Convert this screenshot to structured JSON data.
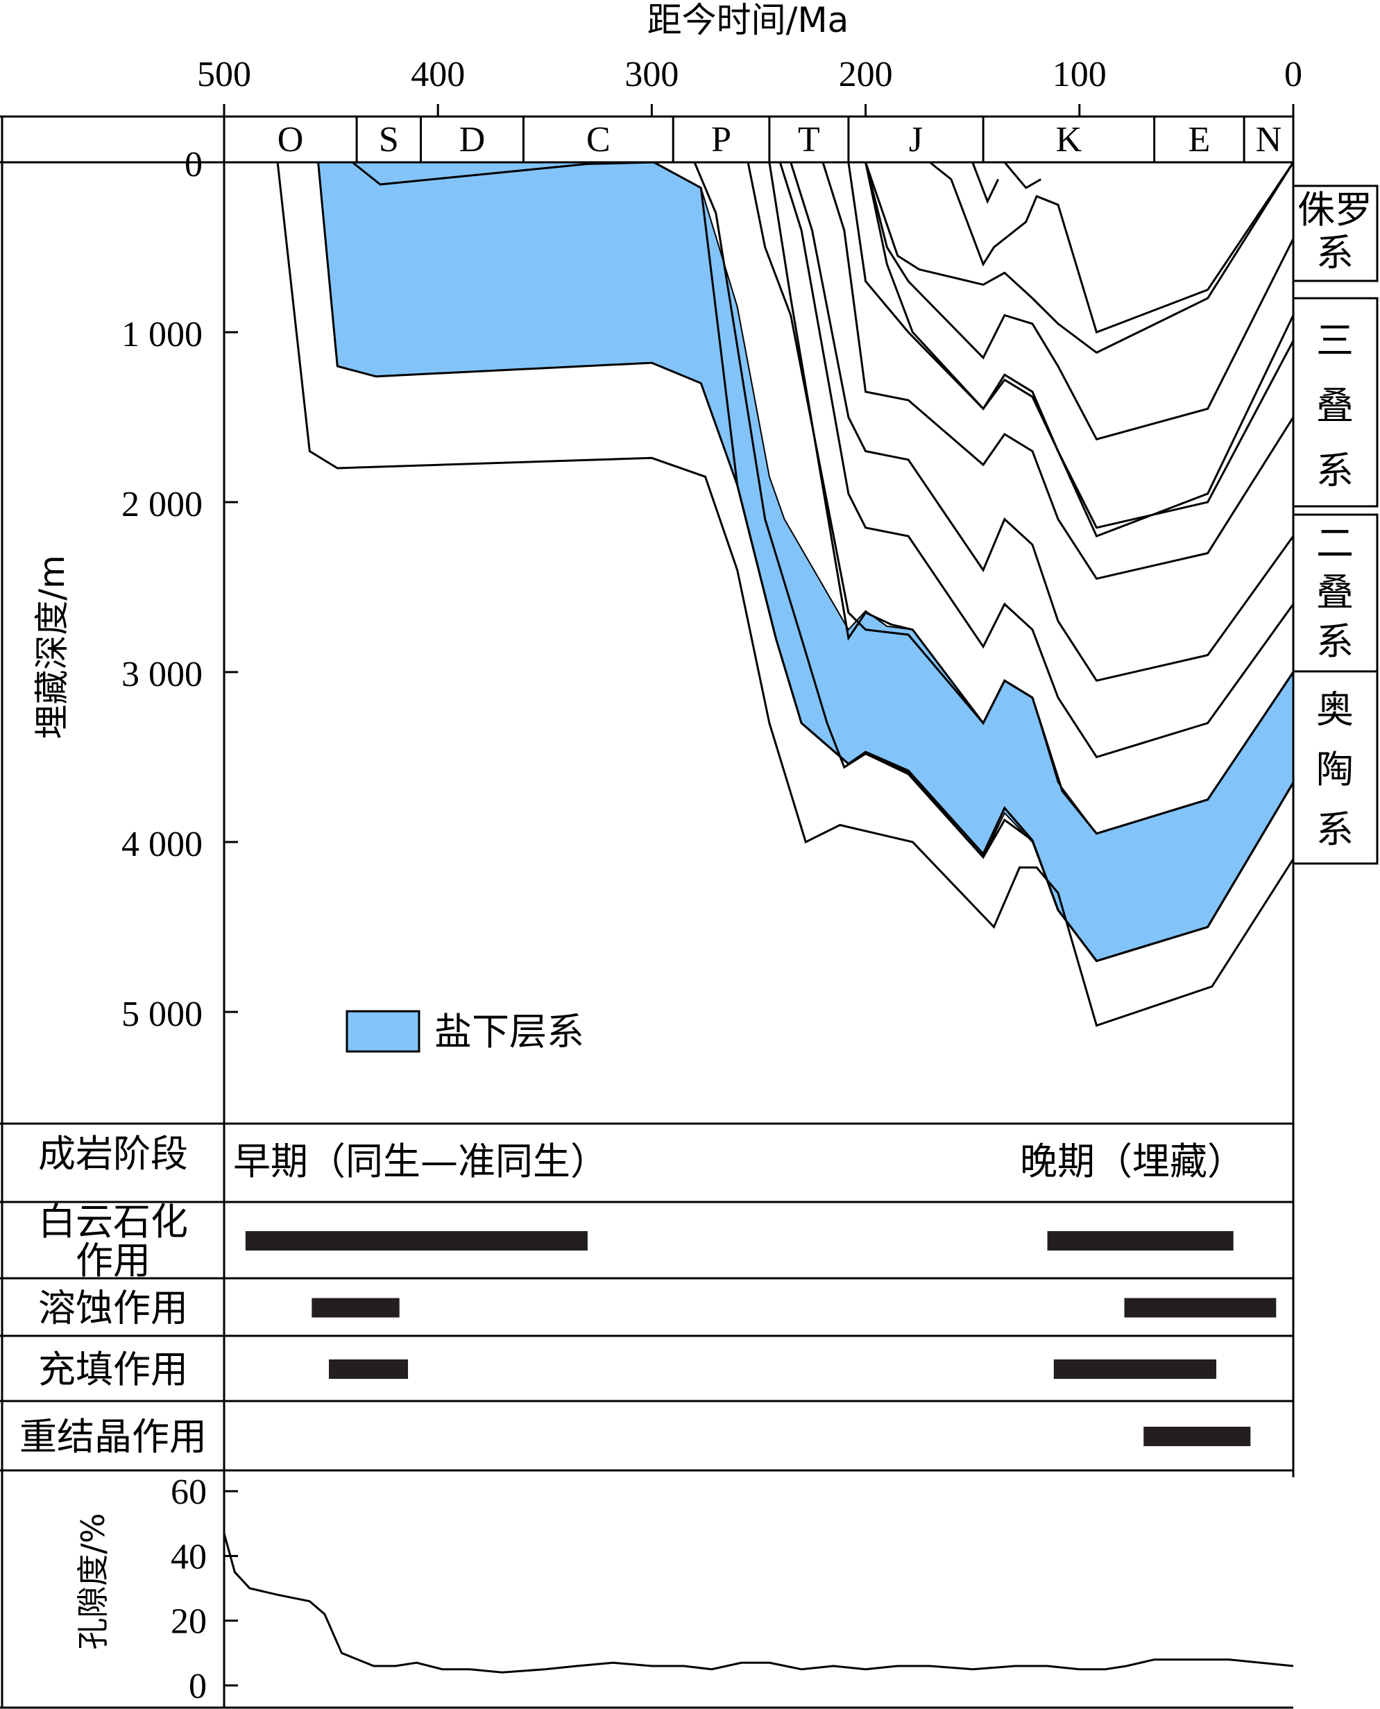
{
  "top_axis": {
    "title": "距今时间/Ma",
    "ticks": [
      "500",
      "400",
      "300",
      "200",
      "100",
      "0"
    ]
  },
  "periods": [
    {
      "code": "O",
      "start": 500,
      "end": 438
    },
    {
      "code": "S",
      "start": 438,
      "end": 408
    },
    {
      "code": "D",
      "start": 408,
      "end": 360
    },
    {
      "code": "C",
      "start": 360,
      "end": 290
    },
    {
      "code": "P",
      "start": 290,
      "end": 245
    },
    {
      "code": "T",
      "start": 245,
      "end": 208
    },
    {
      "code": "J",
      "start": 208,
      "end": 145
    },
    {
      "code": "K",
      "start": 145,
      "end": 65
    },
    {
      "code": "E",
      "start": 65,
      "end": 23
    },
    {
      "code": "N",
      "start": 23,
      "end": 0
    }
  ],
  "y_axis": {
    "title": "埋藏深度/m",
    "ticks": [
      "0",
      "1 000",
      "2 000",
      "3 000",
      "4 000",
      "5 000"
    ]
  },
  "formations": [
    "侏罗系",
    "三叠系",
    "二叠系",
    "奥陶系"
  ],
  "legend": {
    "label": "盐下层系",
    "color": "#82c4fa"
  },
  "diagenesis": {
    "header": "成岩阶段",
    "early": "早期（同生—准同生）",
    "late": "晚期（埋藏）",
    "processes": [
      {
        "label": "白云石化作用",
        "intervals": [
          [
            490,
            330
          ],
          [
            115,
            28
          ]
        ]
      },
      {
        "label": "溶蚀作用",
        "intervals": [
          [
            459,
            418
          ],
          [
            79,
            8
          ]
        ]
      },
      {
        "label": "充填作用",
        "intervals": [
          [
            451,
            414
          ],
          [
            112,
            36
          ]
        ]
      },
      {
        "label": "重结晶作用",
        "intervals": [
          [
            70,
            20
          ]
        ]
      }
    ]
  },
  "porosity": {
    "title": "孔隙度/%",
    "ticks": [
      "0",
      "20",
      "40",
      "60"
    ],
    "ylim": [
      0,
      60
    ]
  },
  "chart_data": {
    "type": "area",
    "title": "",
    "xlabel": "距今时间/Ma",
    "ylabel": "埋藏深度/m",
    "xlim": [
      500,
      0
    ],
    "ylim": [
      0,
      5600
    ],
    "x_reversed": true,
    "y_reversed": true,
    "burial_curves": [
      {
        "points": [
          [
            475,
            0
          ],
          [
            460,
            1700
          ],
          [
            447,
            1800
          ],
          [
            300,
            1740
          ],
          [
            275,
            1850
          ],
          [
            260,
            2400
          ],
          [
            245,
            3300
          ],
          [
            228,
            4000
          ],
          [
            212,
            3900
          ],
          [
            178,
            4000
          ],
          [
            140,
            4500
          ],
          [
            128,
            4150
          ],
          [
            120,
            4150
          ],
          [
            110,
            4300
          ],
          [
            92,
            5080
          ],
          [
            38,
            4850
          ],
          [
            0,
            4100
          ]
        ]
      },
      {
        "points": [
          [
            456,
            0
          ],
          [
            447,
            1200
          ],
          [
            429,
            1260
          ],
          [
            300,
            1180
          ],
          [
            277,
            1300
          ],
          [
            260,
            1900
          ],
          [
            242,
            2800
          ],
          [
            230,
            3300
          ],
          [
            208,
            3540
          ],
          [
            200,
            3470
          ],
          [
            180,
            3580
          ],
          [
            145,
            4070
          ],
          [
            135,
            3800
          ],
          [
            122,
            3990
          ],
          [
            110,
            4400
          ],
          [
            92,
            4700
          ],
          [
            40,
            4500
          ],
          [
            0,
            3650
          ]
        ]
      },
      {
        "points": [
          [
            440,
            0
          ],
          [
            427,
            130
          ],
          [
            330,
            10
          ],
          [
            299,
            0
          ],
          [
            277,
            150
          ],
          [
            260,
            1900
          ],
          [
            242,
            2800
          ],
          [
            230,
            3300
          ],
          [
            208,
            3540
          ],
          [
            200,
            3470
          ],
          [
            180,
            3580
          ],
          [
            145,
            4070
          ],
          [
            135,
            3800
          ],
          [
            122,
            3990
          ],
          [
            110,
            4400
          ],
          [
            92,
            4700
          ],
          [
            40,
            4500
          ],
          [
            0,
            3650
          ]
        ]
      },
      {
        "points": [
          [
            280,
            0
          ],
          [
            270,
            300
          ],
          [
            247,
            2100
          ],
          [
            230,
            2800
          ],
          [
            218,
            3300
          ],
          [
            210,
            3560
          ],
          [
            200,
            3480
          ],
          [
            180,
            3600
          ],
          [
            145,
            4090
          ],
          [
            135,
            3870
          ],
          [
            122,
            3990
          ],
          [
            110,
            4400
          ],
          [
            92,
            4700
          ],
          [
            40,
            4500
          ],
          [
            0,
            3650
          ]
        ]
      },
      {
        "points": [
          [
            255,
            0
          ],
          [
            247,
            500
          ],
          [
            235,
            900
          ],
          [
            208,
            2650
          ],
          [
            200,
            2750
          ],
          [
            180,
            2780
          ],
          [
            145,
            3300
          ],
          [
            135,
            3050
          ],
          [
            122,
            3150
          ],
          [
            108,
            3700
          ],
          [
            92,
            3950
          ],
          [
            40,
            3750
          ],
          [
            0,
            3000
          ]
        ]
      },
      {
        "points": [
          [
            245,
            0
          ],
          [
            235,
            800
          ],
          [
            208,
            2800
          ],
          [
            200,
            2650
          ],
          [
            188,
            2720
          ],
          [
            178,
            2750
          ],
          [
            145,
            3300
          ],
          [
            135,
            3050
          ],
          [
            122,
            3150
          ],
          [
            108,
            3700
          ],
          [
            92,
            3950
          ],
          [
            40,
            3750
          ],
          [
            0,
            3000
          ]
        ]
      },
      {
        "points": [
          [
            240,
            0
          ],
          [
            230,
            400
          ],
          [
            208,
            1950
          ],
          [
            200,
            2150
          ],
          [
            180,
            2200
          ],
          [
            145,
            2850
          ],
          [
            135,
            2600
          ],
          [
            122,
            2750
          ],
          [
            110,
            3150
          ],
          [
            92,
            3500
          ],
          [
            40,
            3300
          ],
          [
            0,
            2600
          ]
        ]
      },
      {
        "points": [
          [
            235,
            0
          ],
          [
            225,
            400
          ],
          [
            208,
            1500
          ],
          [
            200,
            1700
          ],
          [
            180,
            1750
          ],
          [
            145,
            2400
          ],
          [
            135,
            2100
          ],
          [
            122,
            2250
          ],
          [
            110,
            2700
          ],
          [
            92,
            3050
          ],
          [
            40,
            2900
          ],
          [
            0,
            2200
          ]
        ]
      },
      {
        "points": [
          [
            220,
            0
          ],
          [
            210,
            400
          ],
          [
            200,
            1350
          ],
          [
            180,
            1400
          ],
          [
            145,
            1780
          ],
          [
            135,
            1600
          ],
          [
            122,
            1700
          ],
          [
            110,
            2100
          ],
          [
            92,
            2450
          ],
          [
            40,
            2300
          ],
          [
            0,
            1500
          ]
        ]
      },
      {
        "points": [
          [
            208,
            0
          ],
          [
            200,
            700
          ],
          [
            180,
            1000
          ],
          [
            145,
            1450
          ],
          [
            135,
            1250
          ],
          [
            122,
            1350
          ],
          [
            110,
            1700
          ],
          [
            92,
            2150
          ],
          [
            40,
            2000
          ],
          [
            0,
            1050
          ]
        ]
      },
      {
        "points": [
          [
            200,
            0
          ],
          [
            190,
            600
          ],
          [
            178,
            1000
          ],
          [
            145,
            1450
          ],
          [
            135,
            1280
          ],
          [
            122,
            1380
          ],
          [
            110,
            1700
          ],
          [
            92,
            2200
          ],
          [
            40,
            1950
          ],
          [
            0,
            900
          ]
        ]
      },
      {
        "points": [
          [
            200,
            0
          ],
          [
            190,
            500
          ],
          [
            180,
            700
          ],
          [
            145,
            1150
          ],
          [
            135,
            900
          ],
          [
            122,
            950
          ],
          [
            110,
            1200
          ],
          [
            92,
            1630
          ],
          [
            40,
            1450
          ],
          [
            0,
            450
          ]
        ]
      },
      {
        "points": [
          [
            200,
            0
          ],
          [
            185,
            550
          ],
          [
            175,
            630
          ],
          [
            145,
            720
          ],
          [
            135,
            650
          ],
          [
            122,
            800
          ],
          [
            110,
            950
          ],
          [
            92,
            1120
          ],
          [
            40,
            800
          ],
          [
            0,
            0
          ]
        ]
      },
      {
        "points": [
          [
            170,
            0
          ],
          [
            160,
            100
          ],
          [
            145,
            600
          ],
          [
            140,
            500
          ],
          [
            125,
            350
          ],
          [
            120,
            200
          ],
          [
            110,
            250
          ],
          [
            92,
            1000
          ],
          [
            40,
            750
          ],
          [
            0,
            0
          ]
        ]
      },
      {
        "points": [
          [
            150,
            0
          ],
          [
            143,
            230
          ],
          [
            138,
            100
          ]
        ]
      },
      {
        "points": [
          [
            135,
            0
          ],
          [
            125,
            150
          ],
          [
            118,
            100
          ]
        ]
      }
    ],
    "subsalt_band": {
      "upper": [
        [
          456,
          0
        ],
        [
          440,
          0
        ],
        [
          427,
          130
        ],
        [
          330,
          10
        ],
        [
          299,
          0
        ],
        [
          277,
          150
        ],
        [
          260,
          1900
        ],
        [
          242,
          2800
        ],
        [
          230,
          3300
        ],
        [
          208,
          3540
        ],
        [
          200,
          3470
        ],
        [
          180,
          3580
        ],
        [
          145,
          4070
        ]
      ],
      "lower": [
        [
          456,
          0
        ],
        [
          447,
          1200
        ],
        [
          429,
          1260
        ],
        [
          300,
          1180
        ],
        [
          277,
          1300
        ],
        [
          260,
          1900
        ]
      ],
      "polygon": [
        [
          456,
          0
        ],
        [
          299,
          0
        ],
        [
          277,
          150
        ],
        [
          260,
          850
        ],
        [
          245,
          1850
        ],
        [
          238,
          2100
        ],
        [
          208,
          2750
        ],
        [
          200,
          2640
        ],
        [
          190,
          2730
        ],
        [
          178,
          2750
        ],
        [
          145,
          3300
        ],
        [
          135,
          3050
        ],
        [
          122,
          3150
        ],
        [
          110,
          3650
        ],
        [
          92,
          3950
        ],
        [
          40,
          3750
        ],
        [
          0,
          3000
        ],
        [
          0,
          3650
        ],
        [
          40,
          4500
        ],
        [
          92,
          4700
        ],
        [
          110,
          4400
        ],
        [
          122,
          4000
        ],
        [
          135,
          3830
        ],
        [
          145,
          4090
        ],
        [
          180,
          3590
        ],
        [
          200,
          3470
        ],
        [
          208,
          3540
        ],
        [
          230,
          3300
        ],
        [
          242,
          2800
        ],
        [
          260,
          1900
        ],
        [
          277,
          1300
        ],
        [
          300,
          1180
        ],
        [
          429,
          1260
        ],
        [
          447,
          1200
        ]
      ]
    },
    "porosity_series": {
      "name": "孔隙度",
      "points": [
        [
          500,
          47
        ],
        [
          495,
          35
        ],
        [
          488,
          30
        ],
        [
          475,
          28
        ],
        [
          460,
          26
        ],
        [
          453,
          22
        ],
        [
          445,
          10
        ],
        [
          430,
          6
        ],
        [
          420,
          6
        ],
        [
          410,
          7
        ],
        [
          398,
          5
        ],
        [
          385,
          5
        ],
        [
          370,
          4
        ],
        [
          350,
          5
        ],
        [
          335,
          6
        ],
        [
          318,
          7
        ],
        [
          300,
          6
        ],
        [
          285,
          6
        ],
        [
          272,
          5
        ],
        [
          258,
          7
        ],
        [
          245,
          7
        ],
        [
          230,
          5
        ],
        [
          215,
          6
        ],
        [
          200,
          5
        ],
        [
          185,
          6
        ],
        [
          170,
          6
        ],
        [
          150,
          5
        ],
        [
          130,
          6
        ],
        [
          115,
          6
        ],
        [
          100,
          5
        ],
        [
          88,
          5
        ],
        [
          78,
          6
        ],
        [
          65,
          8
        ],
        [
          50,
          8
        ],
        [
          30,
          8
        ],
        [
          0,
          6
        ]
      ]
    }
  }
}
